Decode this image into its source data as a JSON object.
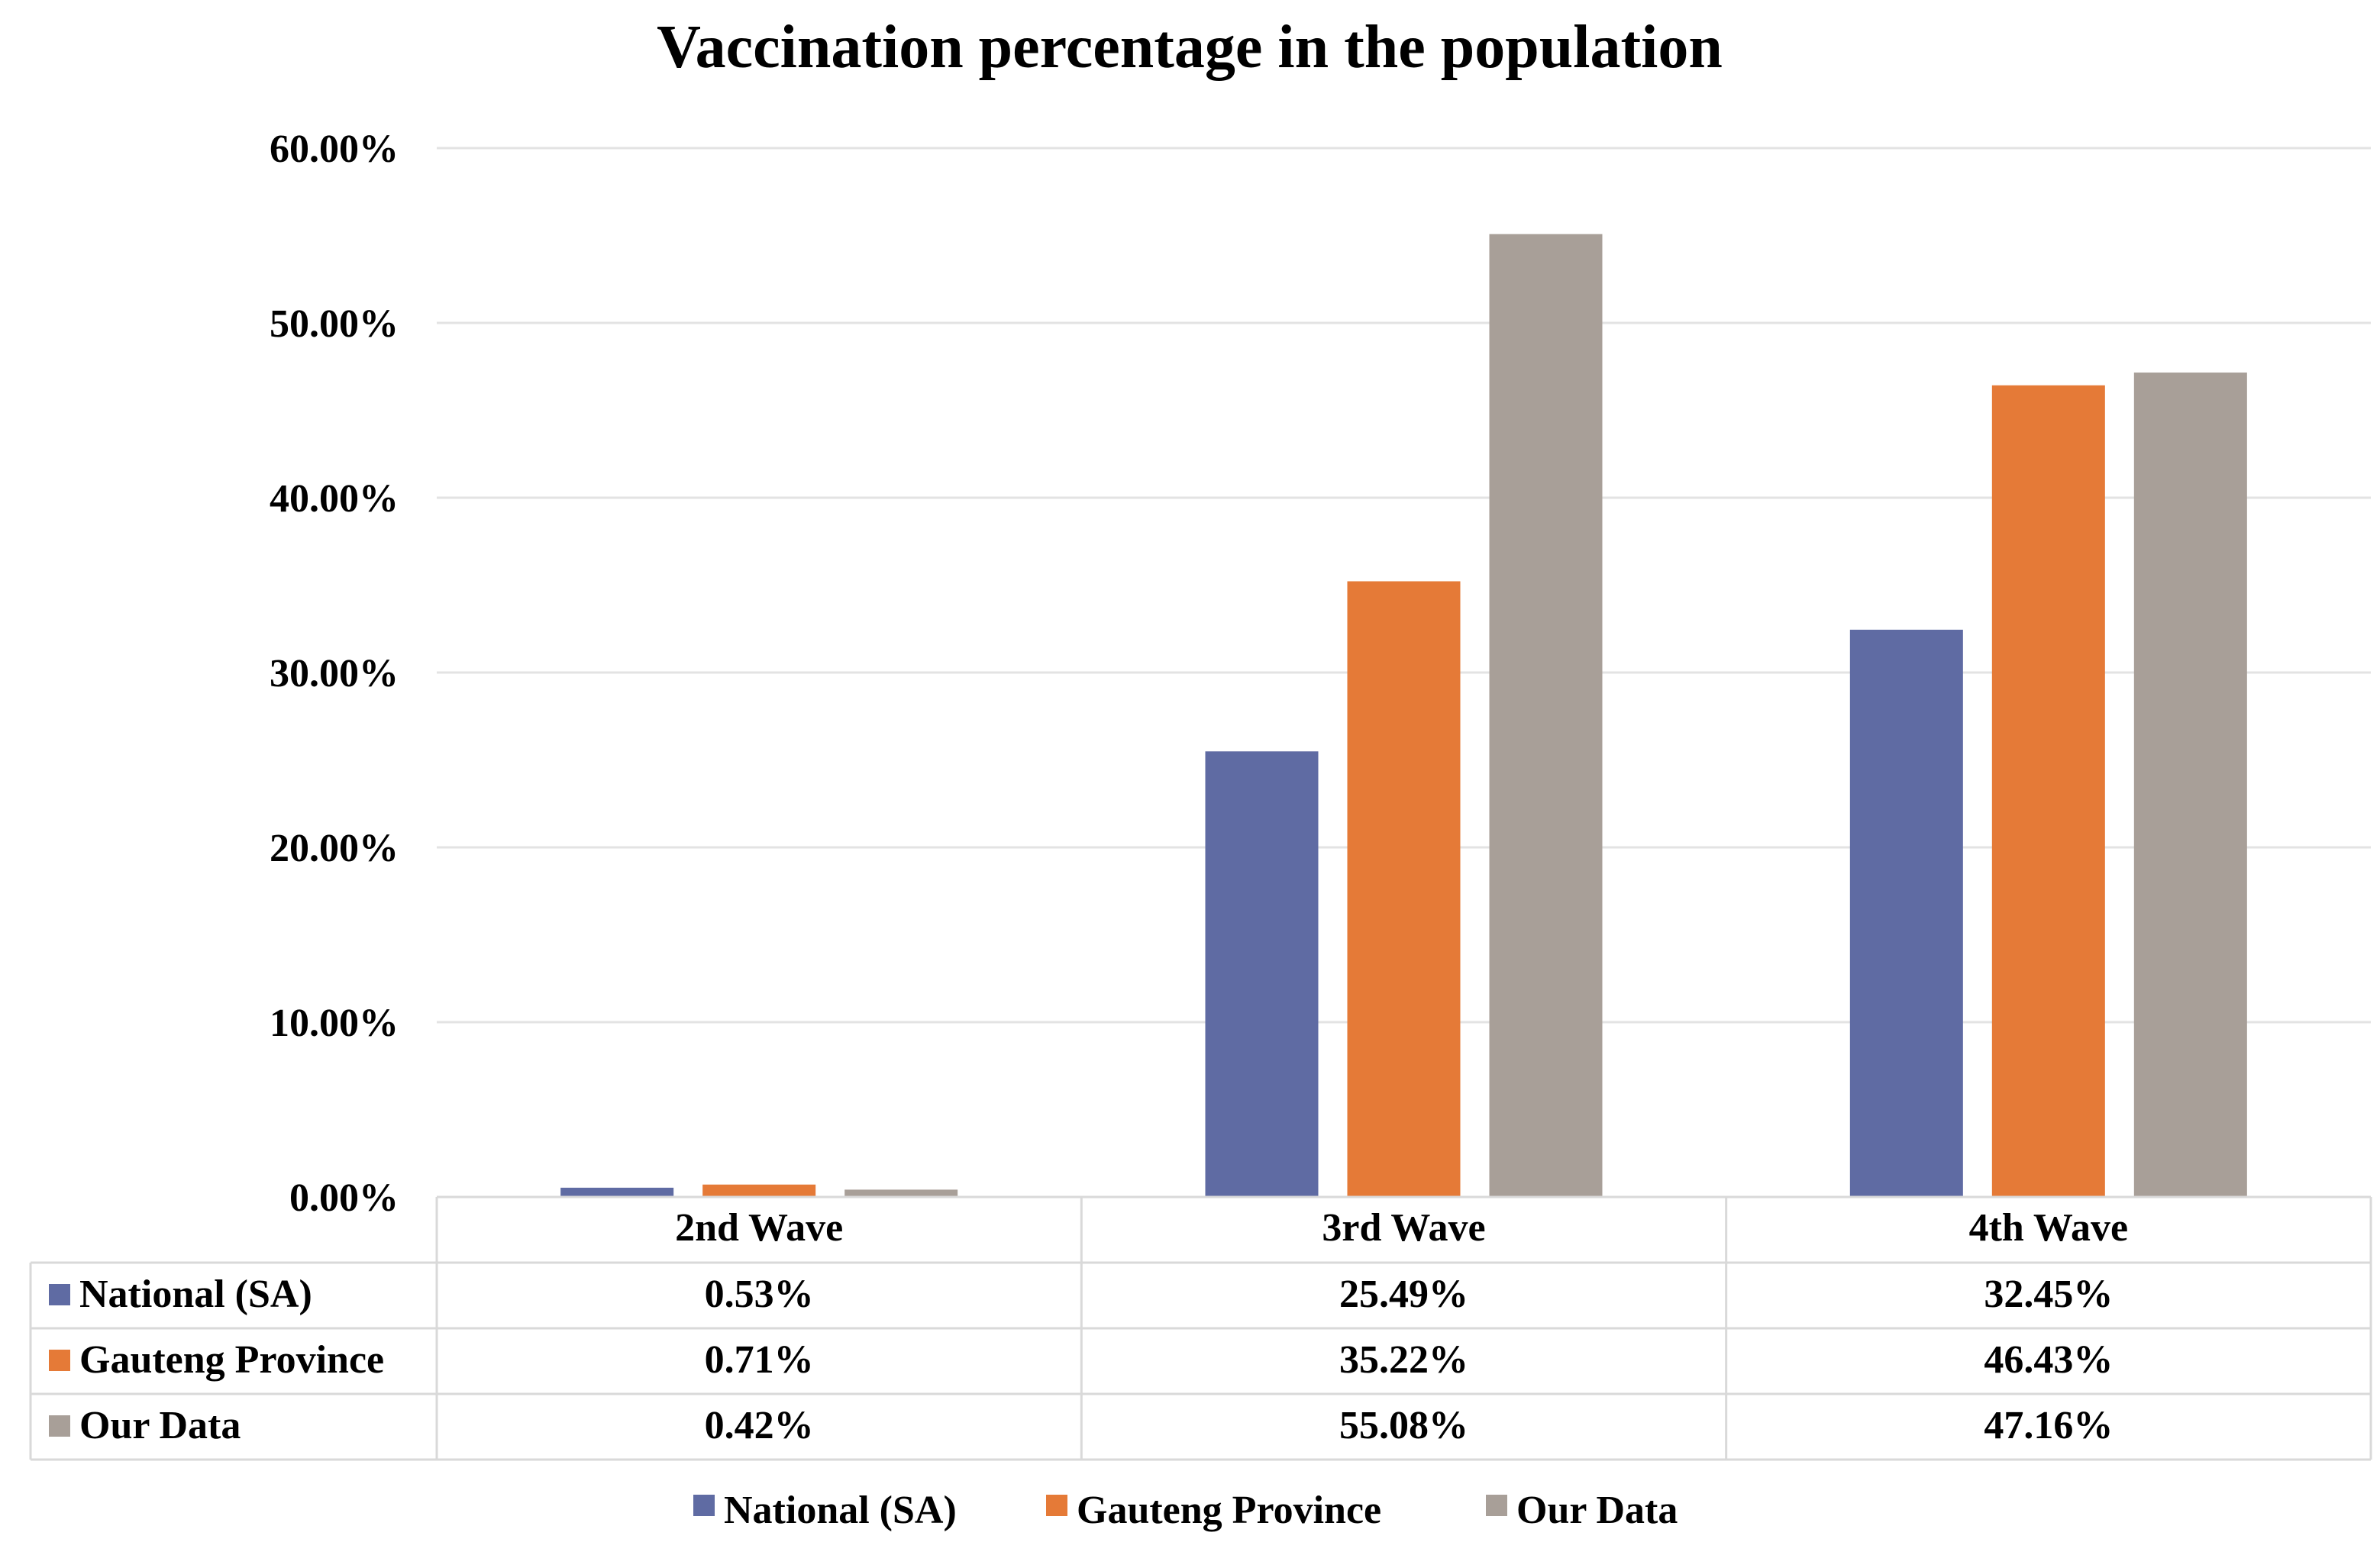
{
  "chart_data": {
    "type": "bar",
    "title": "Vaccination percentage in the population",
    "xlabel": "",
    "ylabel": "",
    "ylim": [
      0,
      60
    ],
    "yticks": [
      0,
      10,
      20,
      30,
      40,
      50,
      60
    ],
    "ytick_labels": [
      "0.00%",
      "10.00%",
      "20.00%",
      "30.00%",
      "40.00%",
      "50.00%",
      "60.00%"
    ],
    "grid": true,
    "legend_position": "bottom",
    "categories": [
      "2nd Wave",
      "3rd Wave",
      "4th Wave"
    ],
    "series": [
      {
        "name": "National (SA)",
        "color": "#5f6ba3",
        "values": [
          0.53,
          25.49,
          32.45
        ],
        "labels": [
          "0.53%",
          "25.49%",
          "32.45%"
        ]
      },
      {
        "name": "Gauteng Province",
        "color": "#e57a37",
        "values": [
          0.71,
          35.22,
          46.43
        ],
        "labels": [
          "0.71%",
          "35.22%",
          "46.43%"
        ]
      },
      {
        "name": "Our Data",
        "color": "#a89f98",
        "values": [
          0.42,
          55.08,
          47.16
        ],
        "labels": [
          "0.42%",
          "55.08%",
          "47.16%"
        ]
      }
    ],
    "data_table": true
  }
}
